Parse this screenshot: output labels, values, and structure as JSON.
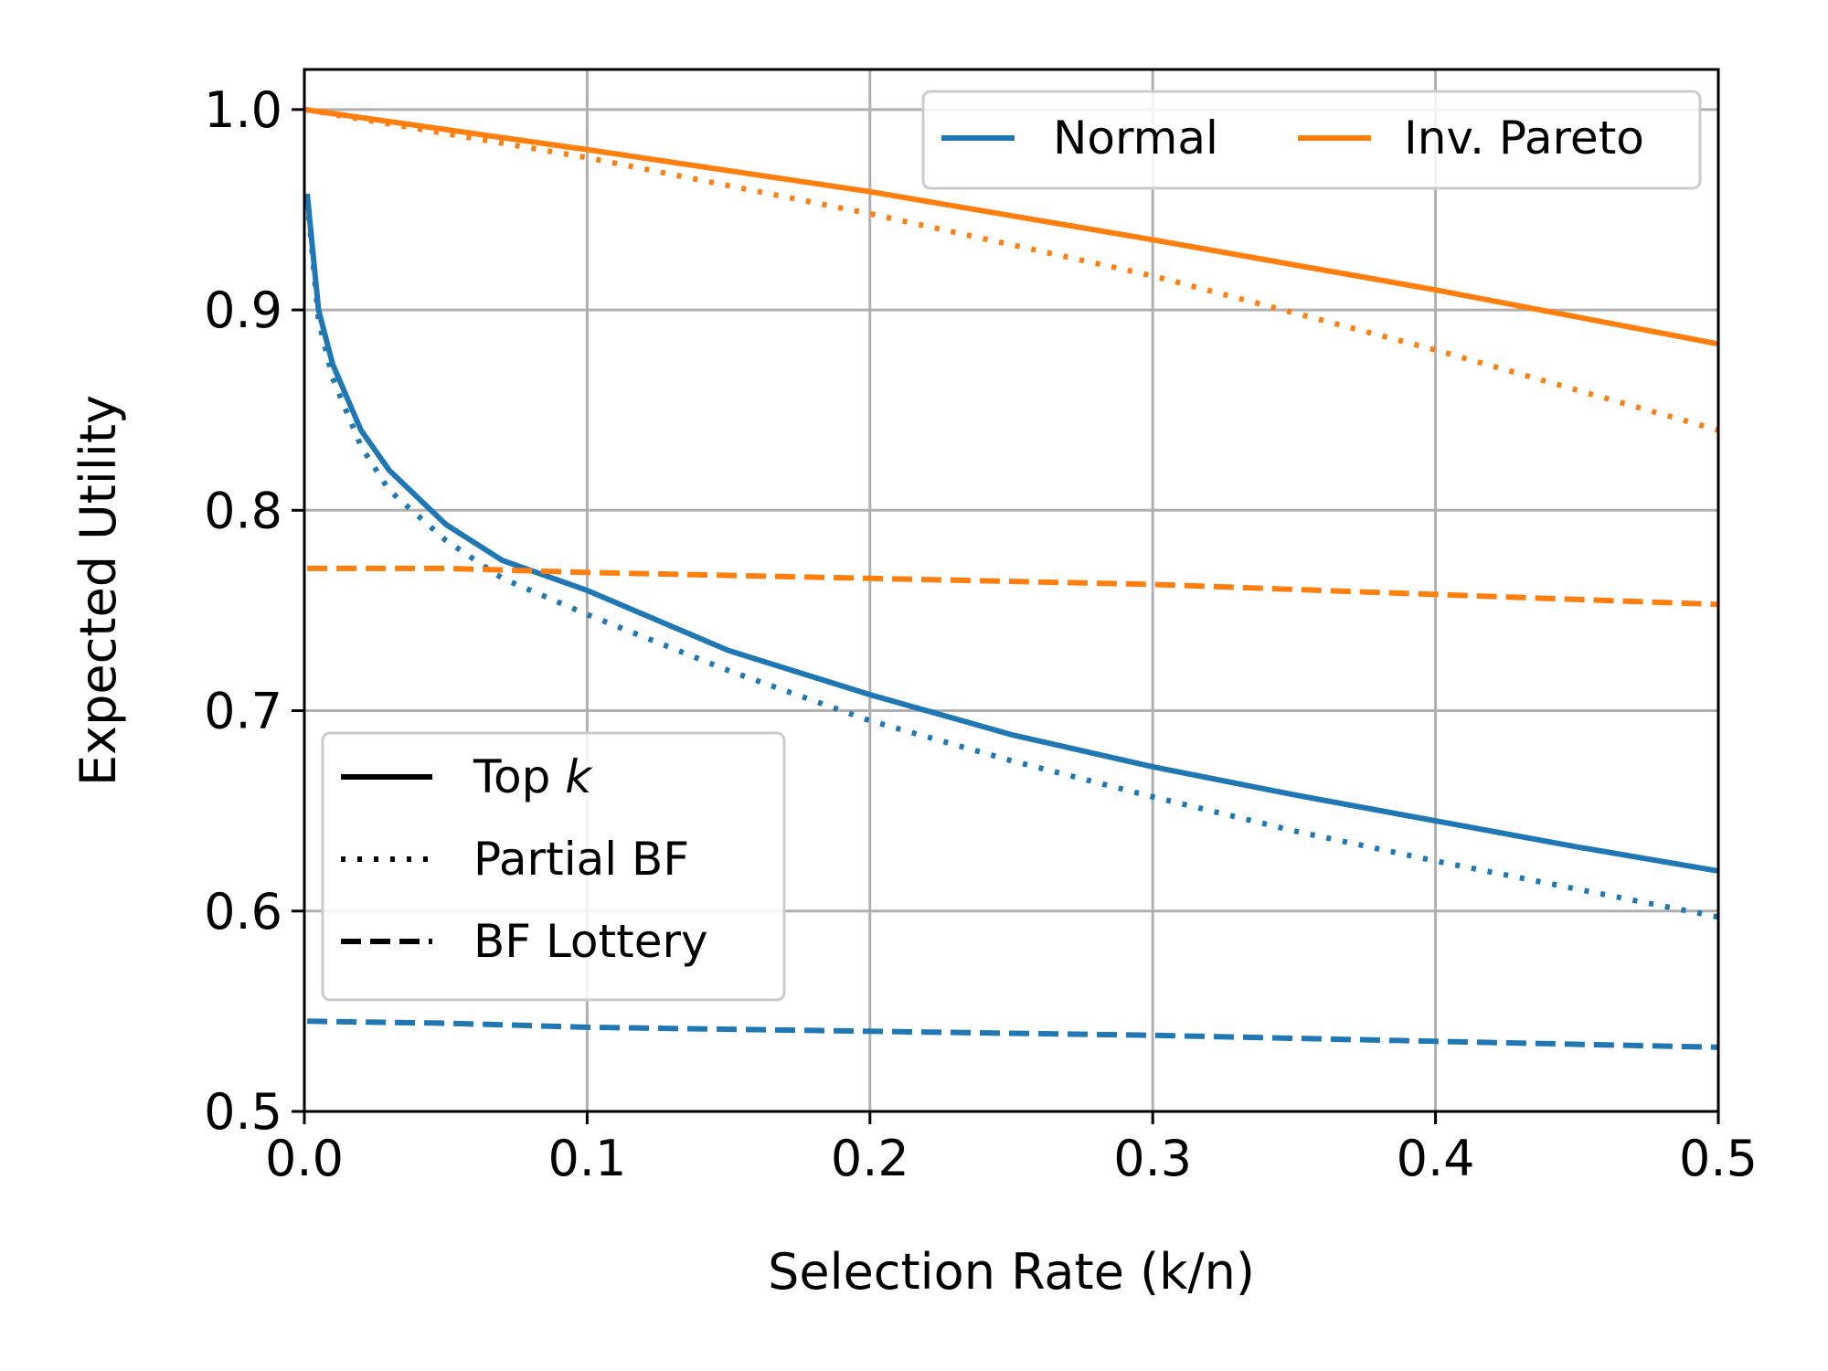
{
  "chart_data": {
    "type": "line",
    "title": "",
    "xlabel": "Selection Rate (k/n)",
    "ylabel": "Expected Utility",
    "xlim": [
      0.0,
      0.5
    ],
    "ylim": [
      0.5,
      1.02
    ],
    "xticks": [
      "0.0",
      "0.1",
      "0.2",
      "0.3",
      "0.4",
      "0.5"
    ],
    "yticks": [
      "0.5",
      "0.6",
      "0.7",
      "0.8",
      "0.9",
      "1.0"
    ],
    "grid": true,
    "colors": {
      "Normal": "#1f77b4",
      "Inv. Pareto": "#ff7f0e"
    },
    "legend_color": {
      "placement": "top-right",
      "entries": [
        {
          "label": "Normal",
          "color": "#1f77b4"
        },
        {
          "label": "Inv. Pareto",
          "color": "#ff7f0e"
        }
      ]
    },
    "legend_style": {
      "placement": "center-left",
      "entries": [
        {
          "label": "Top",
          "label_italic": "k",
          "linestyle": "solid"
        },
        {
          "label": "Partial BF",
          "linestyle": "dotted"
        },
        {
          "label": "BF Lottery",
          "linestyle": "dashed"
        }
      ]
    },
    "series": [
      {
        "distribution": "Normal",
        "method": "Top k",
        "linestyle": "solid",
        "x": [
          0.001,
          0.005,
          0.01,
          0.02,
          0.03,
          0.05,
          0.07,
          0.1,
          0.15,
          0.2,
          0.25,
          0.3,
          0.35,
          0.4,
          0.45,
          0.5
        ],
        "y": [
          0.958,
          0.9,
          0.873,
          0.84,
          0.82,
          0.793,
          0.775,
          0.76,
          0.73,
          0.708,
          0.688,
          0.672,
          0.658,
          0.645,
          0.632,
          0.62
        ]
      },
      {
        "distribution": "Normal",
        "method": "Partial BF",
        "linestyle": "dotted",
        "x": [
          0.001,
          0.005,
          0.01,
          0.02,
          0.03,
          0.05,
          0.07,
          0.1,
          0.15,
          0.2,
          0.25,
          0.3,
          0.35,
          0.4,
          0.45,
          0.5
        ],
        "y": [
          0.955,
          0.895,
          0.866,
          0.832,
          0.81,
          0.785,
          0.766,
          0.748,
          0.72,
          0.695,
          0.675,
          0.657,
          0.64,
          0.625,
          0.611,
          0.597
        ]
      },
      {
        "distribution": "Normal",
        "method": "BF Lottery",
        "linestyle": "dashed",
        "x": [
          0.001,
          0.05,
          0.1,
          0.2,
          0.3,
          0.4,
          0.5
        ],
        "y": [
          0.545,
          0.544,
          0.542,
          0.54,
          0.538,
          0.535,
          0.532
        ]
      },
      {
        "distribution": "Inv. Pareto",
        "method": "Top k",
        "linestyle": "solid",
        "x": [
          0.0,
          0.1,
          0.2,
          0.3,
          0.4,
          0.5
        ],
        "y": [
          1.0,
          0.98,
          0.959,
          0.935,
          0.91,
          0.883
        ]
      },
      {
        "distribution": "Inv. Pareto",
        "method": "Partial BF",
        "linestyle": "dotted",
        "x": [
          0.0,
          0.1,
          0.2,
          0.3,
          0.4,
          0.5
        ],
        "y": [
          1.0,
          0.976,
          0.948,
          0.917,
          0.88,
          0.84
        ]
      },
      {
        "distribution": "Inv. Pareto",
        "method": "BF Lottery",
        "linestyle": "dashed",
        "x": [
          0.001,
          0.05,
          0.1,
          0.2,
          0.3,
          0.4,
          0.5
        ],
        "y": [
          0.771,
          0.771,
          0.769,
          0.766,
          0.763,
          0.758,
          0.753
        ]
      }
    ]
  }
}
